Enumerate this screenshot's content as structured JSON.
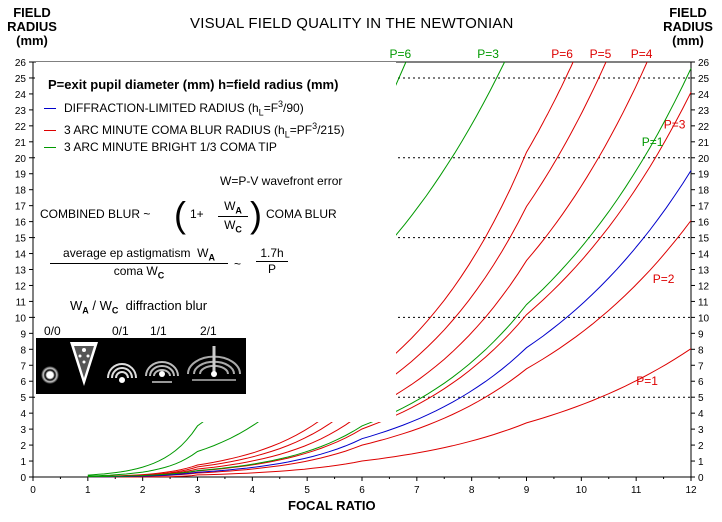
{
  "title": "VISUAL FIELD QUALITY IN THE NEWTONIAN",
  "y_axis_title": [
    "FIELD",
    "RADIUS",
    "(mm)"
  ],
  "y_axis_title_right": [
    "FIELD",
    "RADIUS",
    "(mm)"
  ],
  "x_axis_title": "FOCAL RATIO",
  "colors": {
    "diffraction": "#0000cc",
    "coma3": "#dd0000",
    "bright_tip": "#009900",
    "grid": "#000000"
  },
  "annotations": {
    "definitions": "P=exit pupil diameter (mm)    h=field radius (mm)",
    "legend": [
      {
        "label": "DIFFRACTION-LIMITED RADIUS (hL=F³/90)",
        "color": "#0000cc"
      },
      {
        "label": "3 ARC MINUTE COMA BLUR RADIUS (hL=PF³/215)",
        "color": "#dd0000"
      },
      {
        "label": "3 ARC MINUTE BRIGHT 1/3 COMA TIP",
        "color": "#009900"
      }
    ],
    "wavefront": "W=P-V wavefront error",
    "combined_left": "COMBINED BLUR ~",
    "combined_one": "1+",
    "combined_num": "WA",
    "combined_den": "WC",
    "combined_right": "COMA BLUR",
    "astig_num": "average ep astigmatism  WA",
    "astig_den": "coma WC",
    "astig_tilde": "~",
    "astig_num2": "1.7h",
    "astig_den2": "P",
    "ratio_label": "WA / WC  diffraction blur",
    "pattern_labels": [
      "0/0",
      "0/1",
      "1/1",
      "2/1"
    ]
  },
  "chart_data": {
    "type": "line",
    "xlabel": "FOCAL RATIO",
    "ylabel": "FIELD RADIUS (mm)",
    "xlim": [
      0,
      12
    ],
    "ylim": [
      0,
      26
    ],
    "xticks": [
      0,
      1,
      2,
      3,
      4,
      5,
      6,
      7,
      8,
      9,
      10,
      11,
      12
    ],
    "yticks": [
      0,
      1,
      2,
      3,
      4,
      5,
      6,
      7,
      8,
      9,
      10,
      11,
      12,
      13,
      14,
      15,
      16,
      17,
      18,
      19,
      20,
      21,
      22,
      23,
      24,
      25,
      26
    ],
    "dotted_gridlines_y": [
      5,
      10,
      15,
      20,
      25
    ],
    "series": [
      {
        "name": "P=1",
        "group": "3 arc minute coma blur radius",
        "color": "#dd0000",
        "x": [
          1,
          3,
          6,
          9,
          12
        ],
        "y": [
          0.0,
          0.13,
          1.0,
          3.39,
          8.04
        ],
        "label_at": {
          "x": 11.2,
          "y": 6.0
        }
      },
      {
        "name": "P=2",
        "group": "3 arc minute coma blur radius",
        "color": "#dd0000",
        "x": [
          1,
          3,
          6,
          9,
          12
        ],
        "y": [
          0.01,
          0.25,
          2.0,
          6.78,
          16.07
        ],
        "label_at": {
          "x": 11.5,
          "y": 12.4
        }
      },
      {
        "name": "P=3",
        "group": "3 arc minute coma blur radius",
        "color": "#dd0000",
        "x": [
          1,
          3,
          6,
          9,
          12
        ],
        "y": [
          0.01,
          0.38,
          3.01,
          10.17,
          24.11
        ],
        "label_at": {
          "x": 11.7,
          "y": 22.1
        }
      },
      {
        "name": "P=4",
        "group": "3 arc minute coma blur radius",
        "color": "#dd0000",
        "x": [
          1,
          3,
          6,
          9,
          11.2
        ],
        "y": [
          0.02,
          0.5,
          4.02,
          13.56,
          26.0
        ],
        "label_at": {
          "x": 11.1,
          "y": 26.5
        }
      },
      {
        "name": "P=5",
        "group": "3 arc minute coma blur radius",
        "color": "#dd0000",
        "x": [
          1,
          3,
          6,
          9,
          10.45
        ],
        "y": [
          0.02,
          0.63,
          5.02,
          16.95,
          26.0
        ],
        "label_at": {
          "x": 10.35,
          "y": 26.5
        }
      },
      {
        "name": "P=6",
        "group": "3 arc minute coma blur radius",
        "color": "#dd0000",
        "x": [
          1,
          3,
          6,
          9,
          9.85
        ],
        "y": [
          0.03,
          0.75,
          6.03,
          20.35,
          26.0
        ],
        "label_at": {
          "x": 9.65,
          "y": 26.5
        }
      },
      {
        "name": "",
        "group": "diffraction-limited radius",
        "color": "#0000cc",
        "x": [
          1,
          3,
          6,
          9,
          12
        ],
        "y": [
          0.01,
          0.3,
          2.4,
          8.1,
          19.2
        ]
      },
      {
        "name": "P=1",
        "group": "3 arc minute bright 1/3 coma tip",
        "color": "#009900",
        "x": [
          1,
          3,
          6,
          9,
          12
        ],
        "y": [
          0.02,
          0.4,
          3.2,
          10.8,
          25.6
        ],
        "label_at": {
          "x": 11.3,
          "y": 21.0
        }
      },
      {
        "name": "P=3",
        "group": "3 arc minute bright 1/3 coma tip",
        "color": "#009900",
        "x": [
          1,
          3,
          6,
          8.6
        ],
        "y": [
          0.06,
          1.6,
          12.8,
          26.0
        ],
        "label_at": {
          "x": 8.3,
          "y": 26.5
        }
      },
      {
        "name": "P=6",
        "group": "3 arc minute bright 1/3 coma tip",
        "color": "#009900",
        "x": [
          1,
          3,
          5,
          6.8
        ],
        "y": [
          0.12,
          3.2,
          14.8,
          26.0
        ],
        "label_at": {
          "x": 6.7,
          "y": 26.5
        }
      }
    ]
  }
}
